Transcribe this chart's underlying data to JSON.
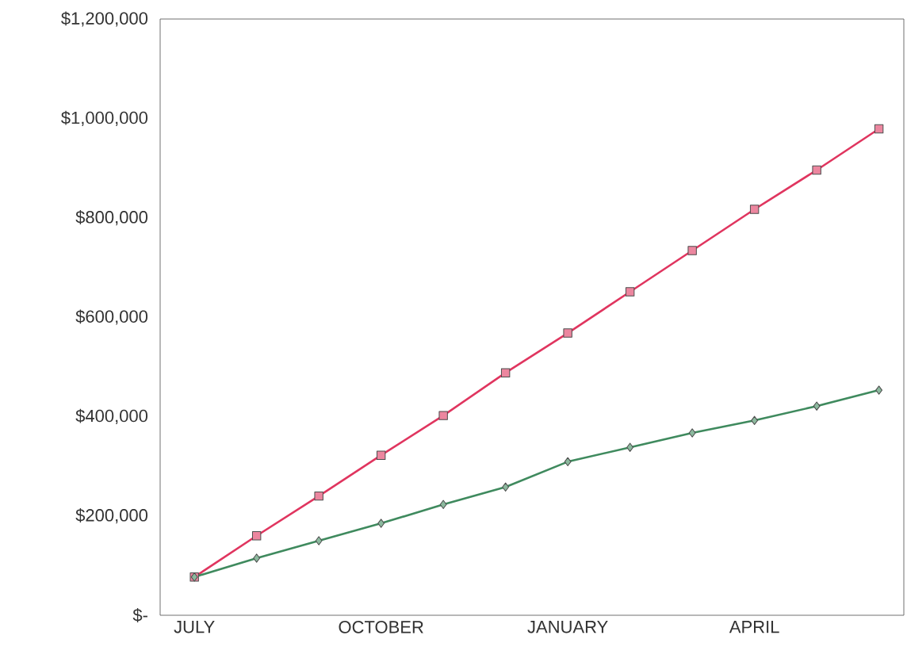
{
  "chart_data": {
    "type": "line",
    "categories": [
      "JULY",
      null,
      null,
      "OCTOBER",
      null,
      null,
      "JANUARY",
      null,
      null,
      "APRIL",
      null,
      null
    ],
    "series": [
      {
        "color": "#e0355f",
        "marker": "square",
        "values": [
          77000,
          160000,
          240000,
          322000,
          402000,
          488000,
          568000,
          651000,
          734000,
          817000,
          896000,
          979000
        ]
      },
      {
        "color": "#3f8a5e",
        "marker": "diamond",
        "values": [
          77000,
          115000,
          150000,
          185000,
          223000,
          258000,
          309000,
          338000,
          367000,
          392000,
          421000,
          453000
        ]
      }
    ],
    "ylim": [
      0,
      1200000
    ],
    "yticks": [
      {
        "value": 0,
        "label": "$-"
      },
      {
        "value": 200000,
        "label": "$200,000"
      },
      {
        "value": 400000,
        "label": "$400,000"
      },
      {
        "value": 600000,
        "label": "$600,000"
      },
      {
        "value": 800000,
        "label": "$800,000"
      },
      {
        "value": 1000000,
        "label": "$1,000,000"
      },
      {
        "value": 1200000,
        "label": "$1,200,000"
      }
    ],
    "grid": false,
    "line_style": "solid"
  }
}
